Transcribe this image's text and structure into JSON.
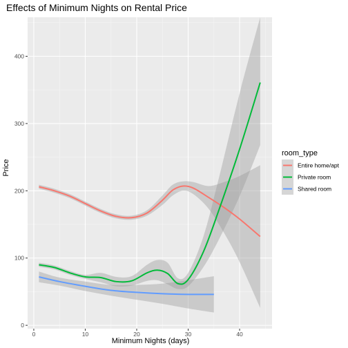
{
  "chart_data": {
    "type": "line",
    "title": "Effects of Minimum Nights on Rental Price",
    "xlabel": "Minimum Nights (days)",
    "ylabel": "Price",
    "xlim": [
      -1.2,
      46.3
    ],
    "ylim": [
      -5,
      458
    ],
    "x_ticks": [
      0,
      10,
      20,
      30,
      40
    ],
    "y_ticks": [
      0,
      100,
      200,
      300,
      400
    ],
    "grid": true,
    "legend": {
      "title": "room_type",
      "position": "right"
    },
    "series": [
      {
        "name": "Entire home/apt",
        "color": "#F8766D",
        "x": [
          1,
          4,
          7,
          10,
          13,
          16,
          19,
          22,
          25,
          27,
          29,
          31,
          34,
          37,
          40,
          44
        ],
        "y": [
          206,
          200,
          192,
          181,
          170,
          162,
          160,
          167,
          186,
          201,
          207,
          204,
          190,
          175,
          158,
          132
        ],
        "ci_upper": [
          209,
          203,
          195,
          184,
          173,
          165,
          163,
          171,
          193,
          209,
          214,
          213,
          207,
          213,
          222,
          238
        ],
        "ci_lower": [
          203,
          197,
          189,
          178,
          167,
          159,
          157,
          163,
          179,
          193,
          200,
          195,
          173,
          137,
          94,
          26
        ]
      },
      {
        "name": "Private room",
        "color": "#00BA38",
        "x": [
          1,
          4,
          7,
          10,
          13,
          16,
          19,
          22,
          24,
          26,
          28,
          30,
          33,
          36,
          40,
          44
        ],
        "y": [
          90,
          86,
          78,
          72,
          71,
          65,
          66,
          78,
          82,
          77,
          62,
          68,
          110,
          172,
          262,
          361
        ],
        "ci_upper": [
          93,
          89,
          81,
          75,
          78,
          72,
          73,
          90,
          97,
          93,
          70,
          78,
          133,
          220,
          345,
          458
        ],
        "ci_lower": [
          87,
          83,
          75,
          69,
          64,
          58,
          59,
          66,
          67,
          61,
          54,
          58,
          87,
          128,
          192,
          268
        ]
      },
      {
        "name": "Shared room",
        "color": "#619CFF",
        "x": [
          1,
          5,
          10,
          15,
          20,
          25,
          30,
          35
        ],
        "y": [
          72,
          65,
          58,
          52,
          49,
          47,
          46,
          46
        ],
        "ci_upper": [
          80,
          71,
          65,
          60,
          60,
          62,
          67,
          73
        ],
        "ci_lower": [
          64,
          59,
          51,
          44,
          38,
          32,
          25,
          19
        ]
      }
    ]
  }
}
